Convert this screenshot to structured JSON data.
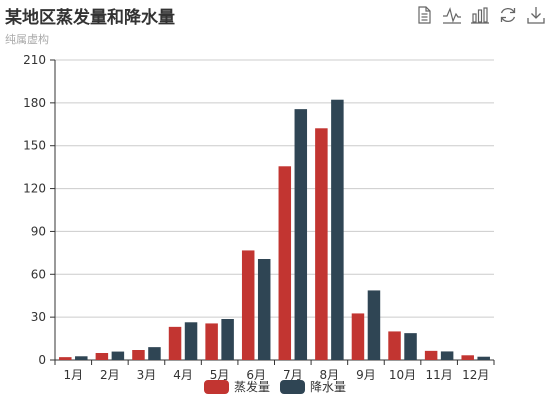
{
  "chart_data": {
    "type": "bar",
    "title": "某地区蒸发量和降水量",
    "subtitle": "纯属虚构",
    "categories": [
      "1月",
      "2月",
      "3月",
      "4月",
      "5月",
      "6月",
      "7月",
      "8月",
      "9月",
      "10月",
      "11月",
      "12月"
    ],
    "series": [
      {
        "name": "蒸发量",
        "color": "#c23531",
        "values": [
          2.0,
          4.9,
          7.0,
          23.2,
          25.6,
          76.7,
          135.6,
          162.2,
          32.6,
          20.0,
          6.4,
          3.3
        ]
      },
      {
        "name": "降水量",
        "color": "#2f4554",
        "values": [
          2.6,
          5.9,
          9.0,
          26.4,
          28.7,
          70.7,
          175.6,
          182.2,
          48.7,
          18.8,
          6.0,
          2.3
        ]
      }
    ],
    "ylim": [
      0,
      210
    ],
    "yticks": [
      "0",
      "30",
      "60",
      "90",
      "120",
      "150",
      "180",
      "210"
    ],
    "ytick_values": [
      0,
      30,
      60,
      90,
      120,
      150,
      180,
      210
    ],
    "grid": true,
    "legend_position": "bottom-center"
  },
  "toolbox": {
    "icons": [
      "data-view-icon",
      "line-chart-icon",
      "bar-chart-icon",
      "restore-icon",
      "download-icon"
    ]
  },
  "colors": {
    "axis": "#333333",
    "grid": "#cccccc",
    "text": "#333333"
  }
}
